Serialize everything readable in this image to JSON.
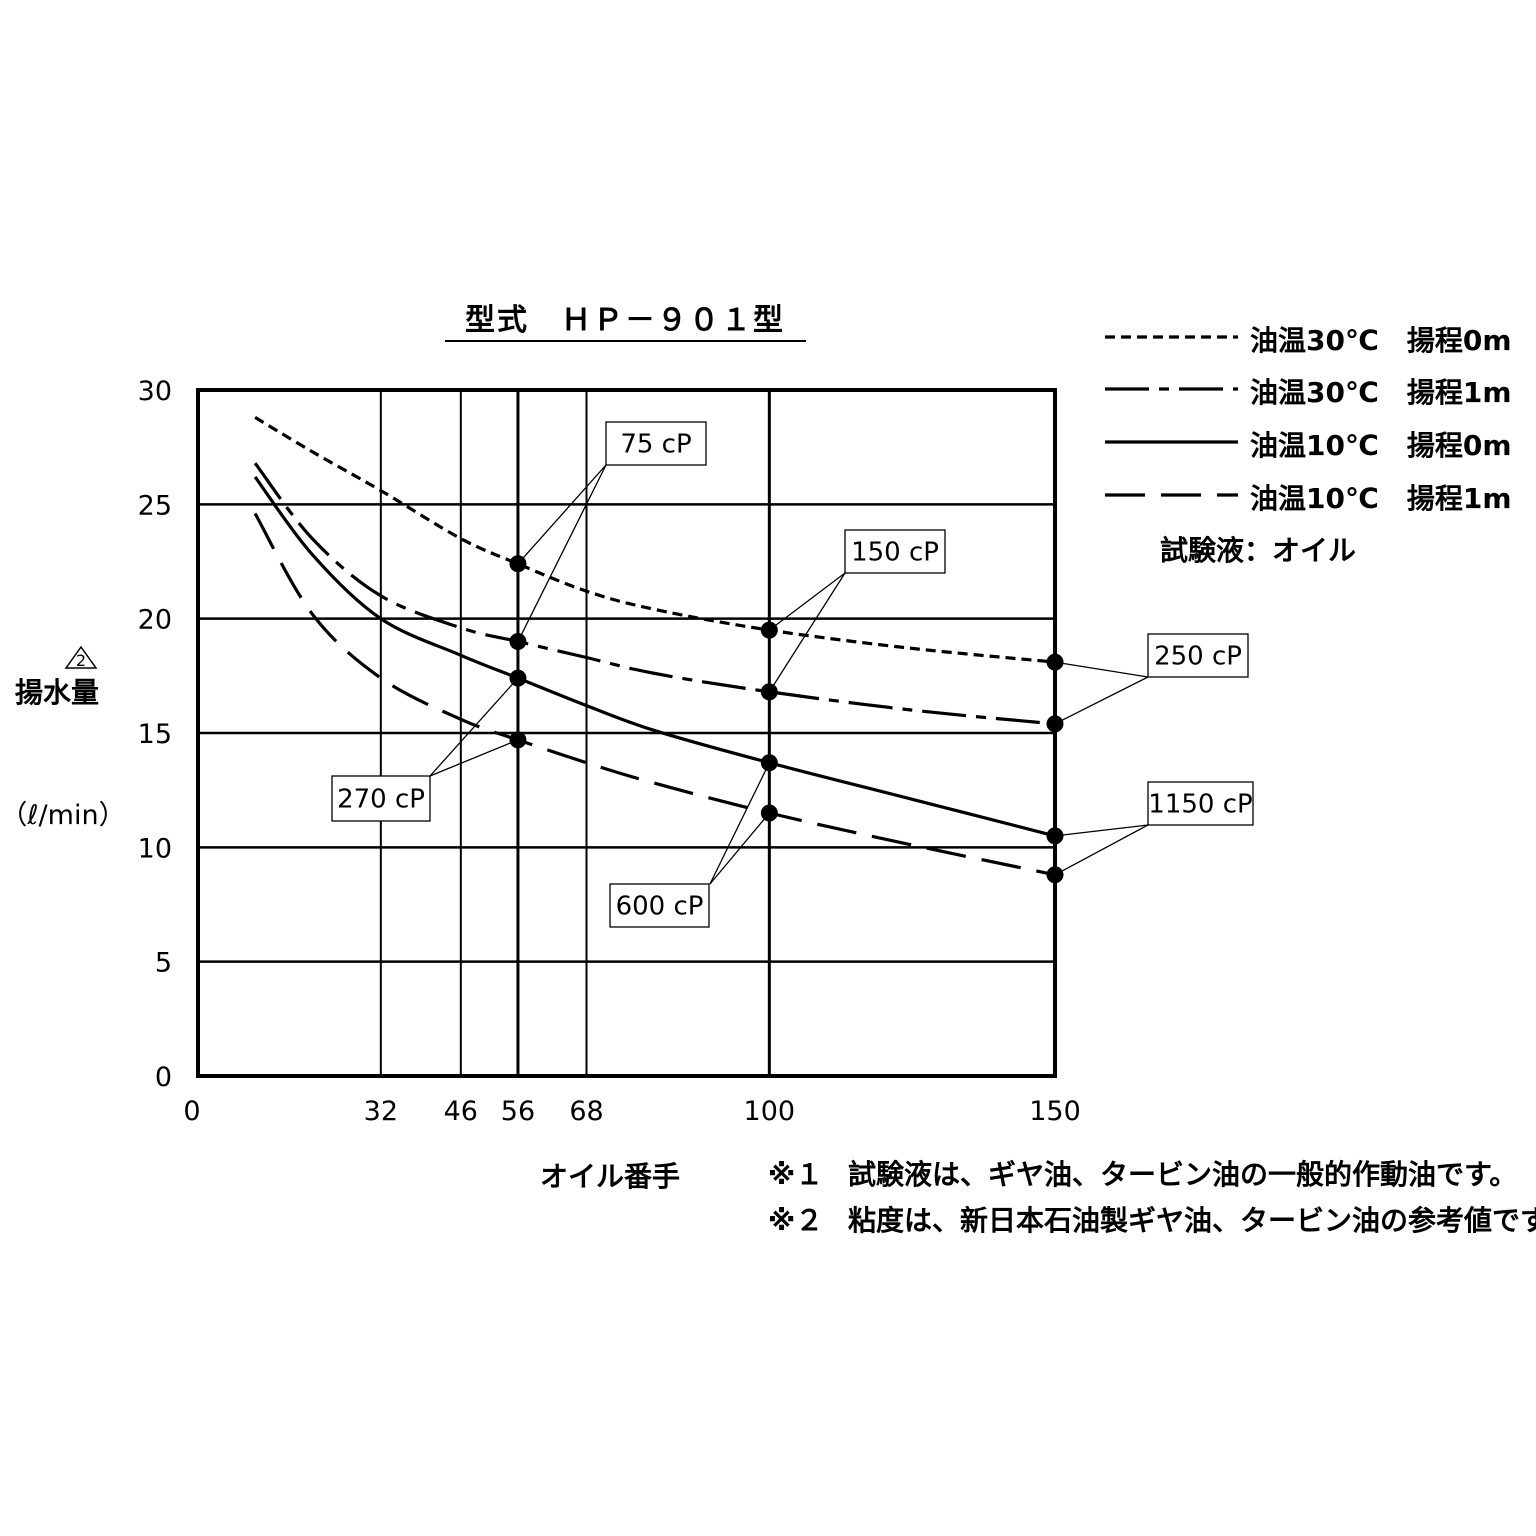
{
  "chart_data": {
    "type": "line",
    "title": "型式　ＨＰ－９０１型",
    "xlabel": "オイル番手",
    "ylabel": "揚水量",
    "ylabel_unit": "（ℓ/min）",
    "ylabel_mark": "2",
    "xlim": [
      0,
      150
    ],
    "ylim": [
      0,
      30
    ],
    "x_ticks": [
      0,
      32,
      46,
      56,
      68,
      100,
      150
    ],
    "y_ticks": [
      0,
      5,
      10,
      15,
      20,
      25,
      30
    ],
    "grid": true,
    "legend_position": "top-right",
    "series": [
      {
        "name": "油温30℃　揚程0m",
        "dash": "short-dash",
        "x": [
          10,
          20,
          32,
          46,
          56,
          68,
          80,
          100,
          125,
          150
        ],
        "y": [
          28.8,
          27.3,
          25.6,
          23.5,
          22.4,
          21.2,
          20.4,
          19.5,
          18.7,
          18.1
        ],
        "markers": [
          {
            "x": 56,
            "y": 22.4
          },
          {
            "x": 100,
            "y": 19.5
          },
          {
            "x": 150,
            "y": 18.1
          }
        ]
      },
      {
        "name": "油温30℃　揚程1m",
        "dash": "long-dash-dot",
        "x": [
          10,
          20,
          32,
          46,
          56,
          68,
          80,
          100,
          125,
          150
        ],
        "y": [
          26.8,
          23.5,
          21.0,
          19.6,
          19.0,
          18.3,
          17.6,
          16.8,
          16.0,
          15.4
        ],
        "markers": [
          {
            "x": 56,
            "y": 19.0
          },
          {
            "x": 100,
            "y": 16.8
          },
          {
            "x": 150,
            "y": 15.4
          }
        ]
      },
      {
        "name": "油温10℃　揚程0m",
        "dash": "solid",
        "x": [
          10,
          20,
          32,
          46,
          56,
          68,
          80,
          100,
          125,
          150
        ],
        "y": [
          26.2,
          22.8,
          20.0,
          18.4,
          17.4,
          16.2,
          15.1,
          13.7,
          12.1,
          10.5
        ],
        "markers": [
          {
            "x": 56,
            "y": 17.4
          },
          {
            "x": 100,
            "y": 13.7
          },
          {
            "x": 150,
            "y": 10.5
          }
        ]
      },
      {
        "name": "油温10℃　揚程1m",
        "dash": "long-dash",
        "x": [
          10,
          20,
          32,
          46,
          56,
          68,
          80,
          100,
          125,
          150
        ],
        "y": [
          24.6,
          20.2,
          17.4,
          15.6,
          14.7,
          13.7,
          12.8,
          11.5,
          10.1,
          8.8
        ],
        "markers": [
          {
            "x": 56,
            "y": 14.7
          },
          {
            "x": 100,
            "y": 11.5
          },
          {
            "x": 150,
            "y": 8.8
          }
        ]
      }
    ],
    "annotations": [
      {
        "label": "75 cP",
        "points": [
          {
            "x": 56,
            "y": 22.4
          },
          {
            "x": 56,
            "y": 19.0
          }
        ]
      },
      {
        "label": "150 cP",
        "points": [
          {
            "x": 100,
            "y": 19.5
          },
          {
            "x": 100,
            "y": 16.8
          }
        ]
      },
      {
        "label": "250 cP",
        "points": [
          {
            "x": 150,
            "y": 18.1
          },
          {
            "x": 150,
            "y": 15.4
          }
        ]
      },
      {
        "label": "270 cP",
        "points": [
          {
            "x": 56,
            "y": 17.4
          },
          {
            "x": 56,
            "y": 14.7
          }
        ]
      },
      {
        "label": "600 cP",
        "points": [
          {
            "x": 100,
            "y": 13.7
          },
          {
            "x": 100,
            "y": 11.5
          }
        ]
      },
      {
        "label": "1150 cP",
        "points": [
          {
            "x": 150,
            "y": 10.5
          },
          {
            "x": 150,
            "y": 8.8
          }
        ]
      }
    ],
    "legend_note": "試験液：オイル",
    "footnotes": [
      {
        "mark": "※１",
        "text": "試験液は、ギヤ油、タービン油の一般的作動油です。"
      },
      {
        "mark": "※２",
        "text": "粘度は、新日本石油製ギヤ油、タービン油の参考値です。"
      }
    ]
  }
}
